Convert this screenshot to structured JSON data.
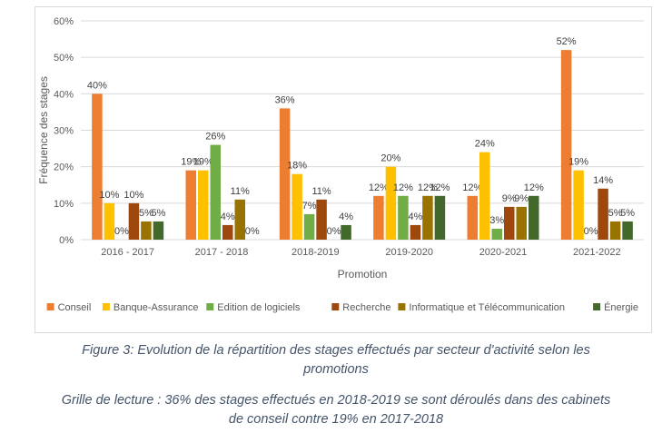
{
  "chart_data": {
    "type": "bar",
    "categories": [
      "2016 - 2017",
      "2017 - 2018",
      "2018-2019",
      "2019-2020",
      "2020-2021",
      "2021-2022"
    ],
    "series": [
      {
        "name": "Conseil",
        "color": "#ed7d31",
        "values": [
          40,
          19,
          36,
          12,
          12,
          52
        ],
        "labels": [
          "40%",
          "19%",
          "36%",
          "12%",
          "12%",
          "52%"
        ]
      },
      {
        "name": "Banque-Assurance",
        "color": "#ffc000",
        "values": [
          10,
          19,
          18,
          20,
          24,
          19
        ],
        "labels": [
          "10%",
          "19%",
          "18%",
          "20%",
          "24%",
          "19%"
        ]
      },
      {
        "name": "Edition de logiciels",
        "color": "#70ad47",
        "values": [
          0,
          26,
          7,
          12,
          3,
          0
        ],
        "labels": [
          "0%",
          "26%",
          "7%",
          "12%",
          "3%",
          "0%"
        ]
      },
      {
        "name": "Recherche",
        "color": "#9e480e",
        "values": [
          10,
          4,
          11,
          4,
          9,
          14
        ],
        "labels": [
          "10%",
          "4%",
          "11%",
          "4%",
          "9%",
          "14%"
        ]
      },
      {
        "name": "Informatique et Télécommunication",
        "color": "#997300",
        "values": [
          5,
          11,
          0,
          12,
          9,
          5
        ],
        "labels": [
          "5%",
          "11%",
          "0%",
          "12%",
          "9%",
          "5%"
        ]
      },
      {
        "name": "Énergie",
        "color": "#43682b",
        "values": [
          5,
          0,
          4,
          12,
          12,
          5
        ],
        "labels": [
          "5%",
          "0%",
          "4%",
          "12%",
          "12%",
          "5%"
        ]
      }
    ],
    "yticks": [
      "0%",
      "10%",
      "20%",
      "30%",
      "40%",
      "50%",
      "60%"
    ],
    "ylim": [
      0,
      60
    ],
    "xlabel": "Promotion",
    "ylabel": "Fréquence des stages",
    "grid": true,
    "legend_position": "bottom"
  },
  "captions": {
    "figure": [
      "Figure 3: Evolution de la répartition des stages effectués par secteur d'activité selon les",
      "promotions"
    ],
    "reading": [
      "Grille de lecture : 36% des stages effectués en 2018-2019 se sont déroulés dans des cabinets",
      "de conseil contre 19% en 2017-2018"
    ]
  }
}
